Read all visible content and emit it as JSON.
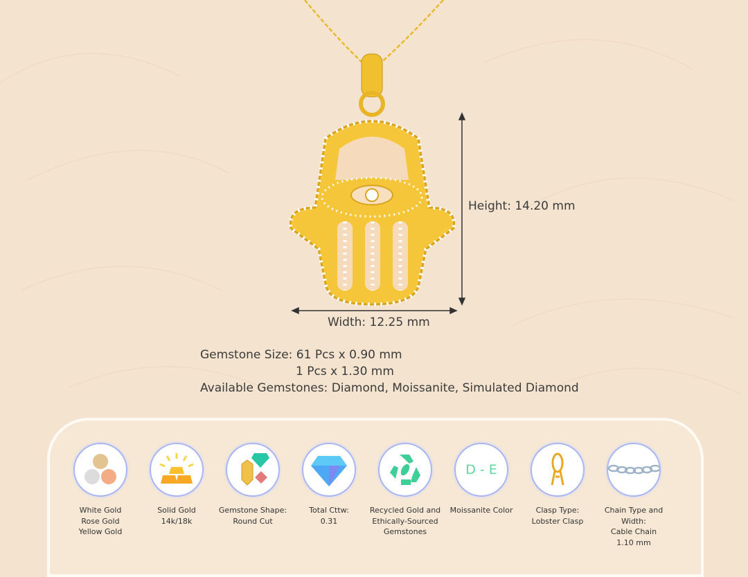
{
  "dimensions": {
    "height": "Height: 14.20 mm",
    "width": "Width: 12.25 mm"
  },
  "specs": {
    "gemstone_size_1": "Gemstone Size: 61 Pcs x 0.90 mm",
    "gemstone_size_2": "1 Pcs x 1.30 mm",
    "available": "Available Gemstones: Diamond, Moissanite, Simulated Diamond"
  },
  "features": [
    {
      "icon": "metal-colors-icon",
      "lines": [
        "White Gold",
        "Rose Gold",
        "Yellow Gold"
      ]
    },
    {
      "icon": "gold-bars-icon",
      "lines": [
        "Solid Gold",
        "14k/18k"
      ]
    },
    {
      "icon": "gemstones-icon",
      "lines": [
        "Gemstone Shape:",
        "Round Cut"
      ]
    },
    {
      "icon": "diamond-icon",
      "lines": [
        "Total Cttw:",
        "0.31"
      ]
    },
    {
      "icon": "recycle-icon",
      "lines": [
        "Recycled Gold and",
        "Ethically-Sourced",
        "Gemstones"
      ]
    },
    {
      "icon": "moissanite-color-icon",
      "text": "D - E",
      "lines": [
        "Moissanite Color"
      ]
    },
    {
      "icon": "lobster-clasp-icon",
      "lines": [
        "Clasp Type:",
        "Lobster Clasp"
      ]
    },
    {
      "icon": "cable-chain-icon",
      "lines": [
        "Chain Type and Width:",
        "Cable Chain",
        "1.10 mm"
      ]
    }
  ],
  "colors": {
    "background": "#f3e3cf",
    "gold": "#f2c230",
    "panel": "#f6e8d5",
    "circle_border": "#a9b6f2"
  }
}
